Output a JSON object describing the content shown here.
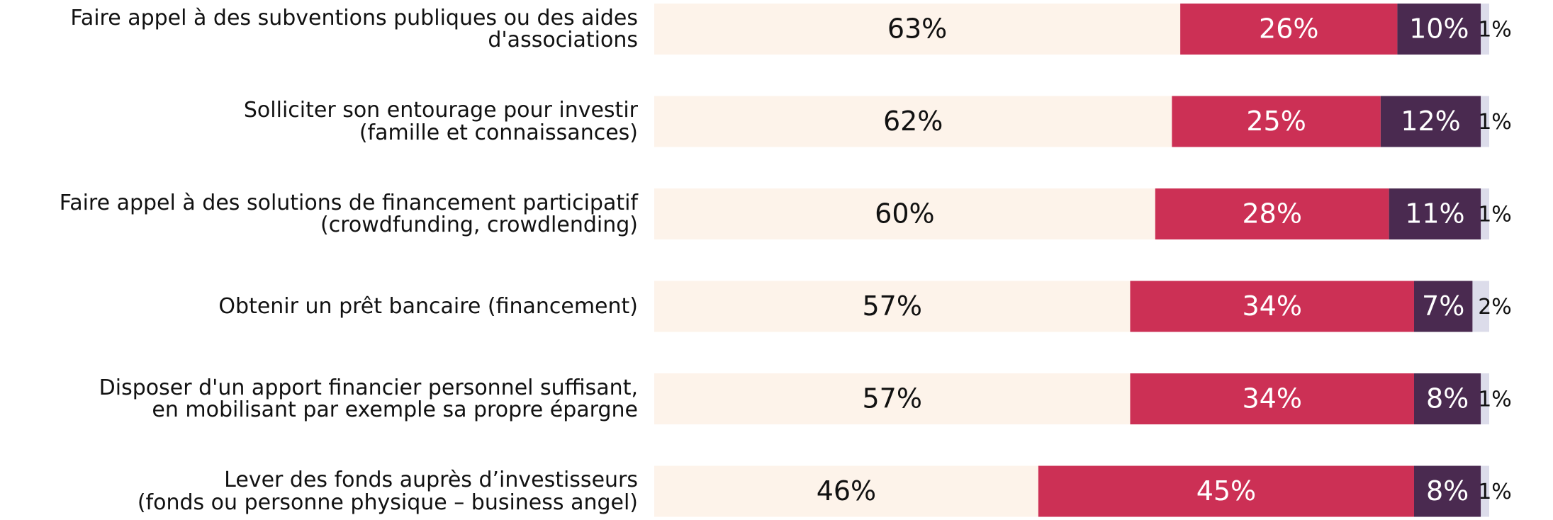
{
  "chart_data": {
    "type": "stacked_bar_horizontal",
    "categories": [
      "Faire appel à des subventions publiques ou des aides\nd'associations",
      "Solliciter son entourage pour investir\n(famille et connaissances)",
      "Faire appel à des solutions de financement participatif\n(crowdfunding, crowdlending)",
      "Obtenir un prêt bancaire (financement)",
      "Disposer d'un apport financier personnel suffisant,\nen mobilisant par exemple sa propre épargne",
      "Lever des fonds auprès d’investisseurs\n(fonds ou personne physique – business angel)"
    ],
    "series": [
      {
        "color": "#fdf3ea",
        "values": [
          63,
          62,
          60,
          57,
          57,
          46
        ],
        "value_labels": [
          "63%",
          "62%",
          "60%",
          "57%",
          "57%",
          "46%"
        ]
      },
      {
        "color": "#cc3055",
        "values": [
          26,
          25,
          28,
          34,
          34,
          45
        ],
        "value_labels": [
          "26%",
          "25%",
          "28%",
          "34%",
          "34%",
          "45%"
        ]
      },
      {
        "color": "#4a2a50",
        "values": [
          10,
          12,
          11,
          7,
          8,
          8
        ],
        "value_labels": [
          "10%",
          "12%",
          "11%",
          "7%",
          "8%",
          "8%"
        ]
      },
      {
        "color": "#dcdcea",
        "values": [
          1,
          1,
          1,
          2,
          1,
          1
        ],
        "value_labels": [
          "1%",
          "1%",
          "1%",
          "2%",
          "1%",
          "1%"
        ]
      }
    ],
    "xlim": [
      0,
      100
    ]
  }
}
